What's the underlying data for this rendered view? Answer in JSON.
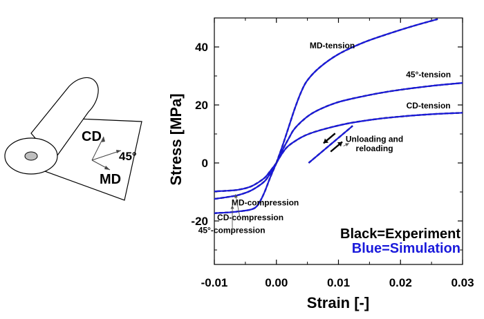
{
  "chart_data": {
    "type": "line",
    "xlabel": "Strain [-]",
    "ylabel": "Stress [MPa]",
    "xlim": [
      -0.01,
      0.03
    ],
    "ylim": [
      -35,
      50
    ],
    "xticks": [
      -0.01,
      0.0,
      0.01,
      0.02,
      0.03
    ],
    "xtick_labels": [
      "-0.01",
      "0.00",
      "0.01",
      "0.02",
      "0.03"
    ],
    "yticks": [
      -20,
      0,
      20,
      40
    ],
    "ytick_labels": [
      "-20",
      "0",
      "20",
      "40"
    ],
    "grid": false,
    "series": [
      {
        "name": "MD-tension",
        "x": [
          0,
          0.001,
          0.002,
          0.003,
          0.004,
          0.005,
          0.007,
          0.01,
          0.014,
          0.018,
          0.022,
          0.026
        ],
        "y": [
          0,
          6,
          12.5,
          19,
          24.5,
          28.5,
          33,
          37.5,
          41.5,
          44.5,
          47.2,
          49.6
        ]
      },
      {
        "name": "45°-tension",
        "x": [
          0,
          0.001,
          0.002,
          0.003,
          0.005,
          0.007,
          0.01,
          0.014,
          0.018,
          0.022,
          0.026,
          0.03
        ],
        "y": [
          0,
          4.5,
          8.5,
          12,
          16,
          18.5,
          21,
          23,
          24.6,
          25.8,
          26.8,
          27.6
        ]
      },
      {
        "name": "CD-tension",
        "x": [
          0,
          0.001,
          0.002,
          0.004,
          0.006,
          0.009,
          0.012,
          0.016,
          0.02,
          0.025,
          0.03
        ],
        "y": [
          0,
          3.5,
          6,
          8.8,
          10.6,
          12.4,
          13.8,
          15.1,
          16,
          16.8,
          17.3
        ]
      },
      {
        "name": "MD-compression",
        "x": [
          0,
          -0.001,
          -0.002,
          -0.003,
          -0.004,
          -0.006,
          -0.008,
          -0.01
        ],
        "y": [
          0,
          -5,
          -10.5,
          -14.5,
          -16,
          -16.7,
          -17.1,
          -17.3
        ]
      },
      {
        "name": "CD-compression",
        "x": [
          0,
          -0.001,
          -0.002,
          -0.004,
          -0.006,
          -0.008,
          -0.01
        ],
        "y": [
          0,
          -2.8,
          -5.3,
          -8,
          -9.2,
          -9.6,
          -9.8
        ]
      },
      {
        "name": "45°-compression",
        "x": [
          0,
          -0.001,
          -0.002,
          -0.004,
          -0.006,
          -0.008,
          -0.01
        ],
        "y": [
          0,
          -3.6,
          -6.5,
          -9.4,
          -11,
          -11.8,
          -12.4
        ]
      },
      {
        "name": "Unloading and reloading",
        "x": [
          0.0052,
          0.0123
        ],
        "y": [
          0,
          12.8
        ]
      }
    ],
    "annotations": [
      {
        "text": "MD-tension",
        "x": 0.009,
        "y": 39.5
      },
      {
        "text": "45°-tension",
        "x": 0.0245,
        "y": 29.5
      },
      {
        "text": "CD-tension",
        "x": 0.0245,
        "y": 18.8
      },
      {
        "text": "Unloading and",
        "x": 0.0158,
        "y": 7.3
      },
      {
        "text": "reloading",
        "x": 0.0158,
        "y": 4
      },
      {
        "text": "MD-compression",
        "x": -0.0018,
        "y": -14.7
      },
      {
        "text": "CD-compression",
        "x": -0.0042,
        "y": -19.8
      },
      {
        "text": "45°-compression",
        "x": -0.0072,
        "y": -24.2
      }
    ],
    "legend_text": [
      {
        "text": "Black=Experiment",
        "color": "#000000"
      },
      {
        "text": "Blue=Simulation",
        "color": "#1a1adb"
      }
    ],
    "colors": {
      "simulation": "#1a1adb",
      "experiment": "#000000"
    }
  },
  "schematic": {
    "cd_label": "CD",
    "angle_label": "45°",
    "md_label": "MD"
  }
}
